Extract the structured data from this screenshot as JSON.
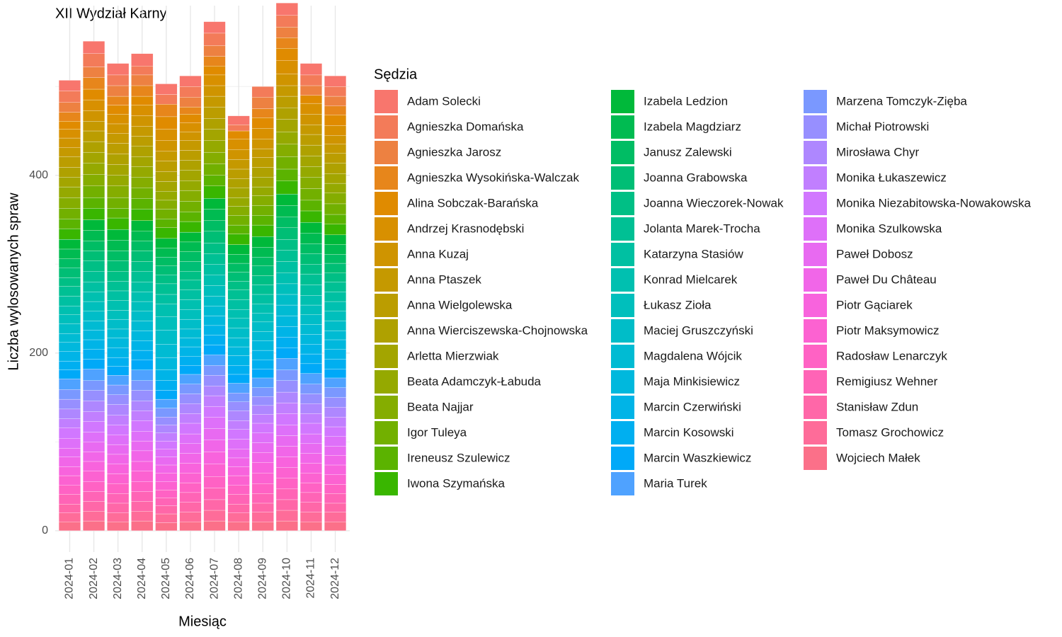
{
  "chart_data": {
    "type": "stacked_bar",
    "title": "XII Wydział Karny",
    "x_label": "Miesiąc",
    "y_label": "Liczba wylosowanych spraw",
    "legend_title": "Sędzia",
    "categories": [
      "2024-01",
      "2024-02",
      "2024-03",
      "2024-04",
      "2024-05",
      "2024-06",
      "2024-07",
      "2024-08",
      "2024-09",
      "2024-10",
      "2024-11",
      "2024-12"
    ],
    "ylim": [
      -24,
      591
    ],
    "yticks": [
      0,
      200,
      400
    ],
    "y_minor_ticks": [
      100,
      300,
      500
    ],
    "grid": true,
    "series": [
      {
        "name": "Adam Solecki",
        "color": "#F8766D",
        "values": [
          12,
          14,
          13,
          14,
          12,
          12,
          13,
          10,
          0,
          14,
          13,
          12
        ]
      },
      {
        "name": "Agnieszka Domańska",
        "color": "#F37B59",
        "values": [
          13,
          15,
          12,
          10,
          11,
          12,
          14,
          7,
          12,
          13,
          12,
          11
        ]
      },
      {
        "name": "Agnieszka Jarosz",
        "color": "#ED8141",
        "values": [
          11,
          12,
          12,
          12,
          0,
          11,
          12,
          0,
          13,
          12,
          11,
          11
        ]
      },
      {
        "name": "Agnieszka Wysokińska-Walczak",
        "color": "#E7861B",
        "values": [
          10,
          13,
          10,
          12,
          14,
          8,
          11,
          0,
          10,
          12,
          0,
          10
        ]
      },
      {
        "name": "Alina Sobczak-Barańska",
        "color": "#E08B00",
        "values": [
          9,
          12,
          10,
          10,
          14,
          10,
          10,
          9,
          12,
          14,
          9,
          12
        ]
      },
      {
        "name": "Andrzej Krasnodębski",
        "color": "#D89000",
        "values": [
          10,
          12,
          11,
          12,
          13,
          10,
          12,
          12,
          12,
          15,
          12,
          11
        ]
      },
      {
        "name": "Anna Kuzaj",
        "color": "#CF9400",
        "values": [
          11,
          12,
          11,
          12,
          12,
          10,
          12,
          11,
          11,
          13,
          12,
          10
        ]
      },
      {
        "name": "Anna Ptaszek",
        "color": "#C59900",
        "values": [
          10,
          11,
          11,
          11,
          11,
          11,
          12,
          11,
          10,
          12,
          11,
          10
        ]
      },
      {
        "name": "Anna Wielgolewska",
        "color": "#BB9D00",
        "values": [
          12,
          12,
          12,
          11,
          12,
          11,
          13,
          11,
          11,
          13,
          12,
          11
        ]
      },
      {
        "name": "Anna Wierciszewska-Chojnowska",
        "color": "#AFA100",
        "values": [
          11,
          12,
          12,
          12,
          11,
          11,
          12,
          10,
          11,
          13,
          12,
          12
        ]
      },
      {
        "name": "Arletta Mierzwiak",
        "color": "#A3A500",
        "values": [
          11,
          12,
          12,
          11,
          11,
          12,
          13,
          11,
          11,
          14,
          12,
          11
        ]
      },
      {
        "name": "Beata Adamczyk-Łabuda",
        "color": "#95A900",
        "values": [
          12,
          13,
          12,
          12,
          10,
          11,
          13,
          10,
          10,
          14,
          12,
          11
        ]
      },
      {
        "name": "Beata Najjar",
        "color": "#85AD00",
        "values": [
          12,
          13,
          13,
          12,
          10,
          12,
          13,
          10,
          11,
          14,
          13,
          12
        ]
      },
      {
        "name": "Igor Tuleya",
        "color": "#72B000",
        "values": [
          12,
          13,
          12,
          12,
          11,
          12,
          13,
          11,
          11,
          14,
          13,
          12
        ]
      },
      {
        "name": "Ireneusz Szulewicz",
        "color": "#5BB300",
        "values": [
          11,
          12,
          11,
          12,
          10,
          11,
          12,
          10,
          11,
          13,
          12,
          11
        ]
      },
      {
        "name": "Iwona Szymańska",
        "color": "#39B600",
        "values": [
          12,
          13,
          13,
          13,
          12,
          12,
          14,
          12,
          13,
          15,
          13,
          12
        ]
      },
      {
        "name": "Izabela Ledzion",
        "color": "#00B93A",
        "values": [
          11,
          12,
          12,
          12,
          11,
          11,
          12,
          11,
          12,
          13,
          12,
          11
        ]
      },
      {
        "name": "Izabela Magdziarz",
        "color": "#00BB51",
        "values": [
          11,
          12,
          12,
          11,
          10,
          11,
          13,
          10,
          11,
          13,
          12,
          11
        ]
      },
      {
        "name": "Janusz Zalewski",
        "color": "#00BD64",
        "values": [
          10,
          11,
          11,
          11,
          10,
          11,
          12,
          10,
          10,
          12,
          11,
          10
        ]
      },
      {
        "name": "Joanna Grabowska",
        "color": "#00BE75",
        "values": [
          11,
          11,
          12,
          12,
          10,
          11,
          13,
          10,
          11,
          13,
          12,
          11
        ]
      },
      {
        "name": "Joanna Wieczorek-Nowak",
        "color": "#00BF85",
        "values": [
          10,
          12,
          11,
          11,
          10,
          10,
          12,
          10,
          10,
          12,
          11,
          10
        ]
      },
      {
        "name": "Jolanta Marek-Trocha",
        "color": "#00C094",
        "values": [
          11,
          12,
          11,
          12,
          12,
          11,
          12,
          11,
          11,
          13,
          12,
          11
        ]
      },
      {
        "name": "Katarzyna Stasiów",
        "color": "#00C0A2",
        "values": [
          11,
          11,
          11,
          11,
          11,
          11,
          12,
          11,
          11,
          13,
          12,
          11
        ]
      },
      {
        "name": "Konrad Mielcarek",
        "color": "#00C0B0",
        "values": [
          10,
          11,
          11,
          11,
          14,
          11,
          12,
          10,
          10,
          12,
          11,
          11
        ]
      },
      {
        "name": "Łukasz Zioła",
        "color": "#00BFBC",
        "values": [
          10,
          11,
          10,
          11,
          15,
          11,
          12,
          11,
          10,
          12,
          11,
          11
        ]
      },
      {
        "name": "Maciej Gruszczyński",
        "color": "#00BDC8",
        "values": [
          11,
          11,
          11,
          11,
          16,
          11,
          11,
          11,
          11,
          12,
          11,
          11
        ]
      },
      {
        "name": "Magdalena Wójcik",
        "color": "#00BBD3",
        "values": [
          10,
          10,
          10,
          11,
          15,
          10,
          11,
          10,
          10,
          12,
          11,
          10
        ]
      },
      {
        "name": "Maja Minkisiewicz",
        "color": "#00B8DD",
        "values": [
          10,
          11,
          11,
          11,
          14,
          10,
          11,
          10,
          11,
          12,
          11,
          11
        ]
      },
      {
        "name": "Marcin Czerwiński",
        "color": "#00B4E7",
        "values": [
          11,
          11,
          11,
          11,
          12,
          11,
          11,
          11,
          11,
          12,
          11,
          11
        ]
      },
      {
        "name": "Marcin Kosowski",
        "color": "#00AFF0",
        "values": [
          10,
          11,
          10,
          11,
          11,
          10,
          11,
          10,
          10,
          12,
          11,
          11
        ]
      },
      {
        "name": "Marcin Waszkiewicz",
        "color": "#00A9F8",
        "values": [
          10,
          11,
          10,
          11,
          10,
          10,
          11,
          10,
          10,
          12,
          11,
          10
        ]
      },
      {
        "name": "Maria Turek",
        "color": "#4FA2FF",
        "values": [
          12,
          13,
          11,
          12,
          10,
          11,
          12,
          11,
          11,
          13,
          12,
          11
        ]
      },
      {
        "name": "Marzena Tomczyk-Zięba",
        "color": "#7A98FF",
        "values": [
          11,
          11,
          11,
          11,
          10,
          11,
          11,
          10,
          10,
          12,
          11,
          11
        ]
      },
      {
        "name": "Michał Piotrowski",
        "color": "#978FFF",
        "values": [
          11,
          12,
          11,
          12,
          9,
          11,
          12,
          10,
          10,
          13,
          11,
          11
        ]
      },
      {
        "name": "Mirosława Chyr",
        "color": "#AE87FF",
        "values": [
          11,
          12,
          12,
          11,
          9,
          11,
          11,
          11,
          10,
          12,
          11,
          11
        ]
      },
      {
        "name": "Monika Łukaszewicz",
        "color": "#C17FFF",
        "values": [
          10,
          11,
          11,
          11,
          9,
          11,
          12,
          10,
          10,
          12,
          11,
          11
        ]
      },
      {
        "name": "Monika Niezabitowska-Nowakowska",
        "color": "#D177FF",
        "values": [
          12,
          12,
          11,
          12,
          9,
          12,
          12,
          11,
          11,
          13,
          12,
          11
        ]
      },
      {
        "name": "Monika Szulkowska",
        "color": "#DE70F9",
        "values": [
          11,
          11,
          11,
          11,
          9,
          11,
          13,
          11,
          11,
          12,
          11,
          11
        ]
      },
      {
        "name": "Paweł Dobosz",
        "color": "#E86AF1",
        "values": [
          10,
          11,
          11,
          11,
          9,
          11,
          13,
          10,
          11,
          12,
          11,
          10
        ]
      },
      {
        "name": "Paweł Du Château",
        "color": "#F166E8",
        "values": [
          11,
          11,
          11,
          12,
          9,
          11,
          13,
          10,
          11,
          12,
          11,
          11
        ]
      },
      {
        "name": "Piotr Gąciarek",
        "color": "#F863DD",
        "values": [
          10,
          11,
          11,
          11,
          10,
          11,
          14,
          10,
          12,
          12,
          11,
          11
        ]
      },
      {
        "name": "Piotr Maksymowicz",
        "color": "#FC62D1",
        "values": [
          11,
          12,
          11,
          12,
          9,
          11,
          14,
          11,
          12,
          12,
          11,
          11
        ]
      },
      {
        "name": "Radosław Lenarczyk",
        "color": "#FF62C4",
        "values": [
          10,
          11,
          11,
          11,
          9,
          11,
          13,
          10,
          11,
          12,
          11,
          10
        ]
      },
      {
        "name": "Remigiusz Wehner",
        "color": "#FF64B6",
        "values": [
          11,
          11,
          11,
          11,
          9,
          11,
          13,
          11,
          11,
          12,
          11,
          11
        ]
      },
      {
        "name": "Stanisław Zdun",
        "color": "#FF67A8",
        "values": [
          10,
          11,
          11,
          11,
          9,
          11,
          12,
          10,
          10,
          12,
          11,
          10
        ]
      },
      {
        "name": "Tomasz Grochowicz",
        "color": "#FE6C99",
        "values": [
          10,
          11,
          10,
          11,
          10,
          11,
          12,
          10,
          11,
          12,
          11,
          11
        ]
      },
      {
        "name": "Wojciech Małek",
        "color": "#FB7089",
        "values": [
          10,
          11,
          10,
          11,
          9,
          10,
          11,
          10,
          10,
          11,
          10,
          10
        ]
      }
    ]
  }
}
